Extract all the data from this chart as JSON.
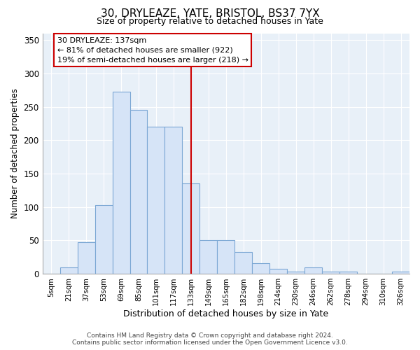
{
  "title": "30, DRYLEAZE, YATE, BRISTOL, BS37 7YX",
  "subtitle": "Size of property relative to detached houses in Yate",
  "xlabel": "Distribution of detached houses by size in Yate",
  "ylabel": "Number of detached properties",
  "bar_labels": [
    "5sqm",
    "21sqm",
    "37sqm",
    "53sqm",
    "69sqm",
    "85sqm",
    "101sqm",
    "117sqm",
    "133sqm",
    "149sqm",
    "165sqm",
    "182sqm",
    "198sqm",
    "214sqm",
    "230sqm",
    "246sqm",
    "262sqm",
    "278sqm",
    "294sqm",
    "310sqm",
    "326sqm"
  ],
  "bar_heights": [
    0,
    10,
    47,
    103,
    273,
    245,
    220,
    220,
    135,
    50,
    50,
    33,
    16,
    8,
    3,
    10,
    3,
    3,
    0,
    0,
    3
  ],
  "bar_color": "#d6e4f7",
  "bar_edge_color": "#7ba7d4",
  "vline_x_index": 8,
  "vline_color": "#cc0000",
  "ylim": [
    0,
    360
  ],
  "yticks": [
    0,
    50,
    100,
    150,
    200,
    250,
    300,
    350
  ],
  "annotation_title": "30 DRYLEAZE: 137sqm",
  "annotation_line1": "← 81% of detached houses are smaller (922)",
  "annotation_line2": "19% of semi-detached houses are larger (218) →",
  "annotation_box_color": "#ffffff",
  "annotation_box_edge": "#cc0000",
  "footer_line1": "Contains HM Land Registry data © Crown copyright and database right 2024.",
  "footer_line2": "Contains public sector information licensed under the Open Government Licence v3.0.",
  "background_color": "#ffffff",
  "plot_bg_color": "#e8f0f8",
  "grid_color": "#ffffff",
  "title_fontsize": 11,
  "subtitle_fontsize": 9
}
